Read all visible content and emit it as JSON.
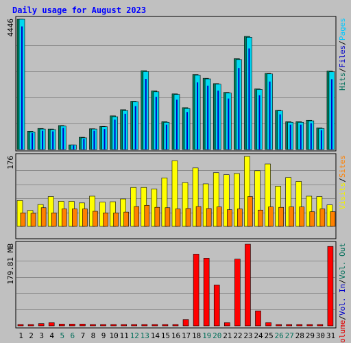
{
  "chart_data": [
    {
      "type": "bar",
      "title": "Daily usage for August 2023",
      "ylabel": "4446",
      "ylim": [
        0,
        4446
      ],
      "categories": [
        "1",
        "2",
        "3",
        "4",
        "5",
        "6",
        "7",
        "8",
        "9",
        "10",
        "11",
        "12",
        "13",
        "14",
        "15",
        "16",
        "17",
        "18",
        "19",
        "20",
        "21",
        "22",
        "23",
        "24",
        "25",
        "26",
        "27",
        "28",
        "29",
        "30",
        "31"
      ],
      "weekend_days": [
        "5",
        "6",
        "12",
        "13",
        "19",
        "20",
        "26",
        "27"
      ],
      "legend": [
        {
          "name": "Hits",
          "color": "#006e59"
        },
        {
          "name": "/",
          "color": "#000000"
        },
        {
          "name": "Files",
          "color": "#0000c8"
        },
        {
          "name": "/",
          "color": "#000000"
        },
        {
          "name": "Pages",
          "color": "#00c8ff"
        }
      ],
      "series": [
        {
          "name": "Hits",
          "color": "#00805c",
          "values": [
            4446,
            625,
            720,
            700,
            820,
            160,
            420,
            710,
            790,
            1150,
            1360,
            1650,
            2690,
            2000,
            950,
            1900,
            1430,
            2560,
            2430,
            2250,
            1950,
            3100,
            3860,
            2070,
            2600,
            1340,
            950,
            950,
            1000,
            740,
            2680
          ]
        },
        {
          "name": "Files",
          "color": "#0000c8",
          "values": [
            4200,
            560,
            640,
            620,
            740,
            140,
            360,
            640,
            700,
            1020,
            1220,
            1480,
            2410,
            1800,
            850,
            1700,
            1280,
            2290,
            2180,
            2010,
            1740,
            2780,
            3450,
            1850,
            2320,
            1200,
            850,
            850,
            900,
            660,
            2400
          ]
        },
        {
          "name": "Pages",
          "color": "#00d8f0",
          "values": [
            4446,
            600,
            700,
            680,
            800,
            160,
            400,
            700,
            780,
            1120,
            1330,
            1630,
            2660,
            1970,
            930,
            1880,
            1400,
            2540,
            2410,
            2230,
            1930,
            3070,
            3830,
            2050,
            2580,
            1320,
            930,
            930,
            980,
            720,
            2650
          ]
        }
      ]
    },
    {
      "type": "bar",
      "ylabel": "176",
      "ylim": [
        0,
        176
      ],
      "legend": [
        {
          "name": "Visits",
          "color": "#f0f000"
        },
        {
          "name": "/",
          "color": "#000000"
        },
        {
          "name": "Sites",
          "color": "#ff8000"
        }
      ],
      "series": [
        {
          "name": "Visits",
          "color": "#ffff00",
          "values": [
            65,
            40,
            55,
            75,
            63,
            63,
            59,
            76,
            61,
            62,
            69,
            98,
            98,
            94,
            122,
            165,
            110,
            147,
            107,
            135,
            130,
            133,
            176,
            140,
            157,
            101,
            123,
            113,
            76,
            75,
            54
          ]
        },
        {
          "name": "Sites",
          "color": "#ff8000",
          "values": [
            34,
            33,
            47,
            34,
            44,
            44,
            44,
            38,
            34,
            34,
            36,
            50,
            53,
            48,
            47,
            44,
            45,
            50,
            45,
            49,
            42,
            44,
            75,
            41,
            49,
            48,
            49,
            49,
            37,
            44,
            37
          ]
        }
      ]
    },
    {
      "type": "bar",
      "ylabel": "179.81 MB",
      "ylim": [
        0,
        179.81
      ],
      "legend": [
        {
          "name": "Volume",
          "color": "#e00000"
        },
        {
          "name": "/",
          "color": "#000000"
        },
        {
          "name": "Vol. In",
          "color": "#0000c8"
        },
        {
          "name": "/",
          "color": "#000000"
        },
        {
          "name": "Vol. Out",
          "color": "#006e59"
        }
      ],
      "series": [
        {
          "name": "Volume",
          "color": "#ff0000",
          "values": [
            3,
            3,
            5,
            7,
            4,
            4,
            4,
            2,
            2,
            2,
            2,
            2,
            2,
            2,
            2,
            3,
            14,
            158,
            149,
            90,
            7,
            147,
            179.81,
            33,
            7,
            1,
            1,
            1,
            1,
            1,
            175
          ]
        }
      ]
    }
  ],
  "colors": {
    "background": "#c0c0c0",
    "title": "#0000ff",
    "axis_label": "#000000",
    "weekday_label": "#000000",
    "weekend_label": "#006e59"
  }
}
